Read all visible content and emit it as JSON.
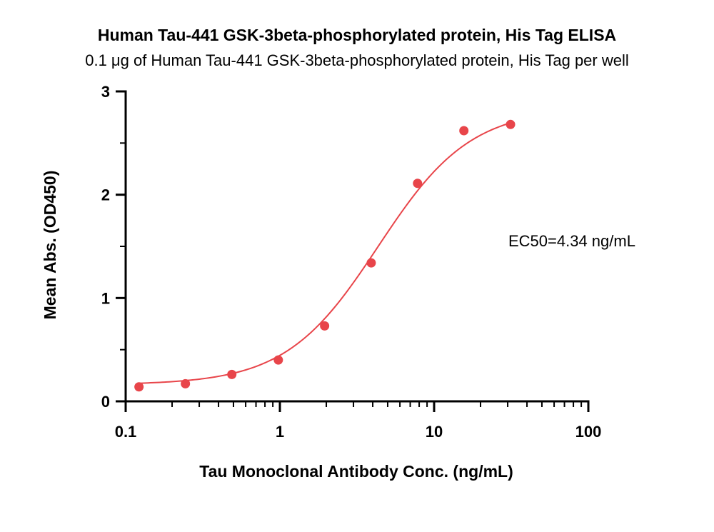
{
  "chart_data": {
    "type": "scatter",
    "title": "Human Tau-441 GSK-3beta-phosphorylated protein, His Tag ELISA",
    "subtitle": "0.1 μg of Human Tau-441 GSK-3beta-phosphorylated protein, His Tag per well",
    "xlabel": "Tau Monoclonal Antibody Conc. (ng/mL)",
    "ylabel": "Mean Abs. (OD450)",
    "xscale": "log",
    "xlim": [
      0.1,
      100
    ],
    "ylim": [
      0,
      3
    ],
    "x_ticks": [
      "0.1",
      "1",
      "10",
      "100"
    ],
    "y_ticks": [
      "0",
      "1",
      "2",
      "3"
    ],
    "grid": false,
    "color": "#e8454a",
    "annotation": "EC50=4.34 ng/mL",
    "points": [
      {
        "x": 0.122,
        "y": 0.14
      },
      {
        "x": 0.244,
        "y": 0.17
      },
      {
        "x": 0.488,
        "y": 0.26
      },
      {
        "x": 0.977,
        "y": 0.4
      },
      {
        "x": 1.95,
        "y": 0.73
      },
      {
        "x": 3.91,
        "y": 1.34
      },
      {
        "x": 7.81,
        "y": 2.11
      },
      {
        "x": 15.6,
        "y": 2.62
      },
      {
        "x": 31.3,
        "y": 2.68
      }
    ],
    "fit": {
      "model": "4PL",
      "bottom": 0.16,
      "top": 2.84,
      "ec50": 4.34,
      "hill": 1.45,
      "x_range": [
        0.122,
        31.3
      ]
    }
  }
}
